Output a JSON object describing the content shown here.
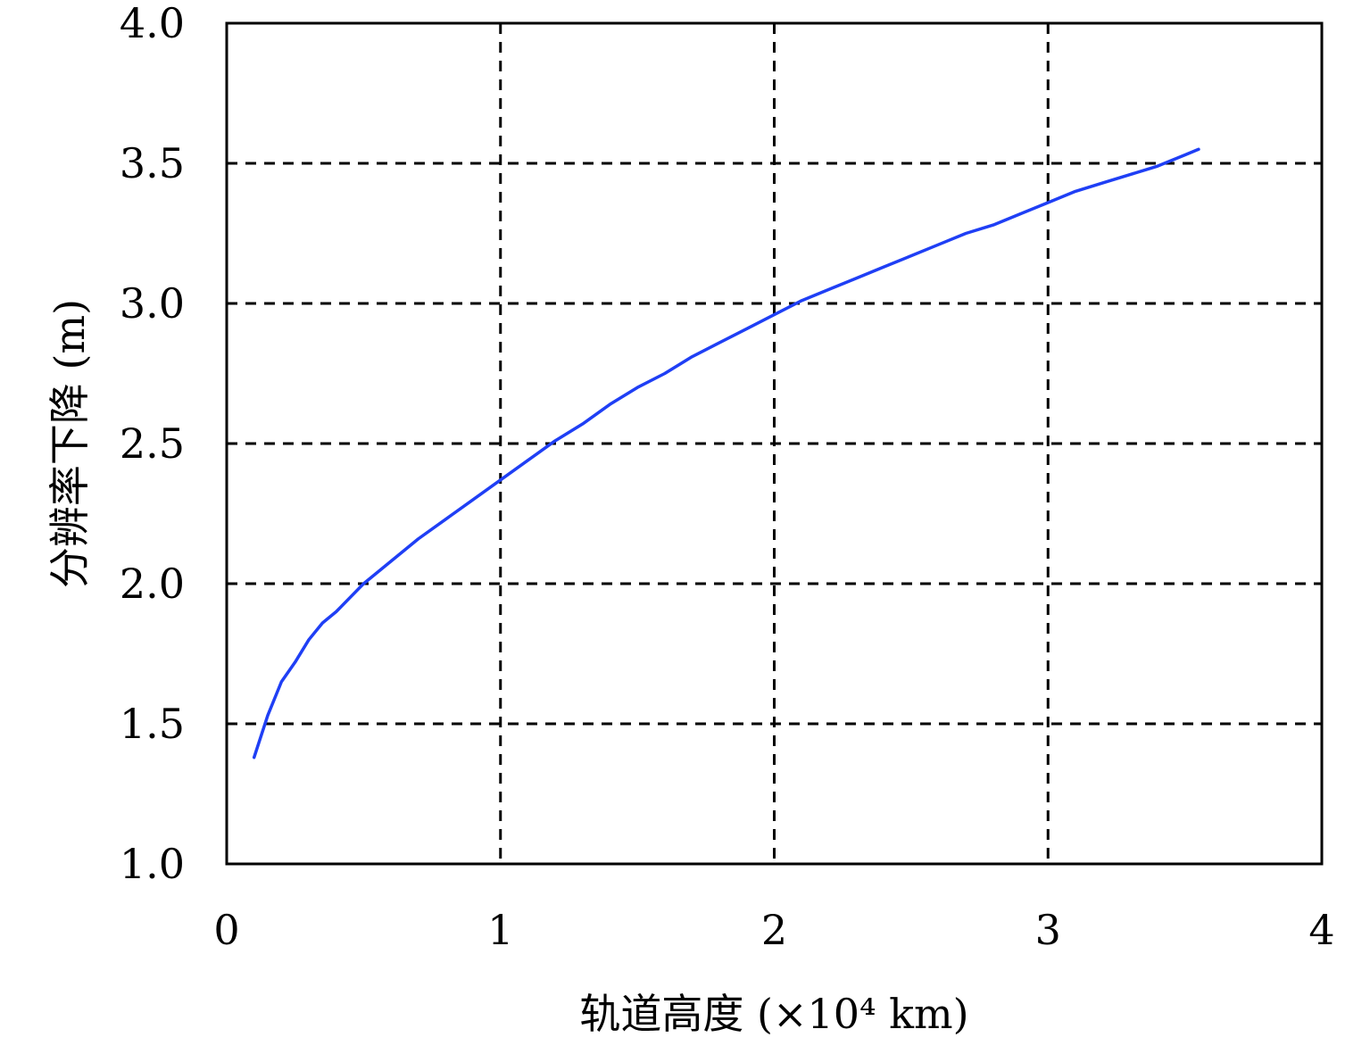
{
  "chart_data": {
    "type": "line",
    "xlabel": "轨道高度 (×10⁴ km)",
    "ylabel": "分辨率下降 (m)",
    "xlim": [
      0,
      4
    ],
    "ylim": [
      1.0,
      4.0
    ],
    "x_ticks": [
      0,
      1,
      2,
      3,
      4
    ],
    "x_tick_labels": [
      "0",
      "1",
      "2",
      "3",
      "4"
    ],
    "y_ticks": [
      1.0,
      1.5,
      2.0,
      2.5,
      3.0,
      3.5,
      4.0
    ],
    "y_tick_labels": [
      "1.0",
      "1.5",
      "2.0",
      "2.5",
      "3.0",
      "3.5",
      "4.0"
    ],
    "grid": true,
    "grid_style": "dashed",
    "series": [
      {
        "color": "#1f3ff5",
        "x": [
          0.1,
          0.15,
          0.2,
          0.25,
          0.3,
          0.35,
          0.4,
          0.45,
          0.5,
          0.6,
          0.7,
          0.8,
          0.9,
          1.0,
          1.1,
          1.2,
          1.3,
          1.4,
          1.5,
          1.6,
          1.7,
          1.8,
          1.9,
          2.0,
          2.1,
          2.2,
          2.3,
          2.4,
          2.5,
          2.6,
          2.7,
          2.8,
          2.9,
          3.0,
          3.1,
          3.2,
          3.3,
          3.4,
          3.5,
          3.55
        ],
        "y": [
          1.38,
          1.53,
          1.65,
          1.72,
          1.8,
          1.86,
          1.9,
          1.95,
          2.0,
          2.08,
          2.16,
          2.23,
          2.3,
          2.37,
          2.44,
          2.51,
          2.57,
          2.64,
          2.7,
          2.75,
          2.81,
          2.86,
          2.91,
          2.96,
          3.01,
          3.05,
          3.09,
          3.13,
          3.17,
          3.21,
          3.25,
          3.28,
          3.32,
          3.36,
          3.4,
          3.43,
          3.46,
          3.49,
          3.53,
          3.55
        ]
      }
    ]
  }
}
